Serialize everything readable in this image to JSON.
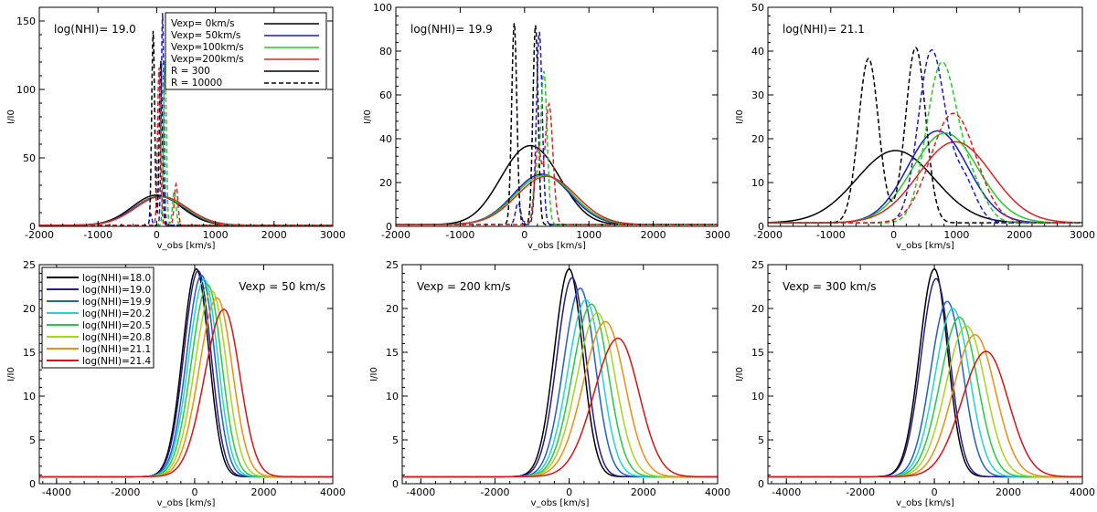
{
  "figure": {
    "description_labels": true
  },
  "chart_data": [
    {
      "type": "line",
      "panel": "top-left",
      "xlabel": "v_obs [km/s]",
      "ylabel": "I/I0",
      "xlim": [
        -2000,
        3000
      ],
      "ylim": [
        0,
        160
      ],
      "xticks": [
        -2000,
        -1000,
        0,
        1000,
        2000,
        3000
      ],
      "yticks": [
        0,
        50,
        100,
        150
      ],
      "annotation": "log(NHI)= 19.0",
      "legend": {
        "placement": "top-right",
        "entries": [
          {
            "label": "Vexp=  0km/s",
            "color": "#000000",
            "dash": "solid"
          },
          {
            "label": "Vexp= 50km/s",
            "color": "#1a1acc",
            "dash": "solid"
          },
          {
            "label": "Vexp=100km/s",
            "color": "#22cc22",
            "dash": "solid"
          },
          {
            "label": "Vexp=200km/s",
            "color": "#dd2222",
            "dash": "solid"
          },
          {
            "label": "R =   300",
            "color": "#000000",
            "dash": "solid"
          },
          {
            "label": "R = 10000",
            "color": "#000000",
            "dash": "dashed"
          }
        ]
      },
      "series": [
        {
          "name": "Vexp=0 R=300",
          "color": "#000000",
          "dash": "solid",
          "components": [
            {
              "amp": 22,
              "center": 0,
              "sigma": 420
            }
          ]
        },
        {
          "name": "Vexp=50 R=300",
          "color": "#1a1acc",
          "dash": "solid",
          "components": [
            {
              "amp": 21,
              "center": 40,
              "sigma": 430
            }
          ]
        },
        {
          "name": "Vexp=100 R=300",
          "color": "#22cc22",
          "dash": "solid",
          "components": [
            {
              "amp": 21,
              "center": 60,
              "sigma": 430
            }
          ]
        },
        {
          "name": "Vexp=200 R=300",
          "color": "#dd2222",
          "dash": "solid",
          "components": [
            {
              "amp": 21,
              "center": 80,
              "sigma": 440
            }
          ]
        },
        {
          "name": "Vexp=0 R=10000",
          "color": "#000000",
          "dash": "dashed",
          "components": [
            {
              "amp": 142,
              "center": -60,
              "sigma": 25
            },
            {
              "amp": 120,
              "center": 70,
              "sigma": 25
            }
          ]
        },
        {
          "name": "Vexp=50 R=10000",
          "color": "#1a1acc",
          "dash": "dashed",
          "components": [
            {
              "amp": 155,
              "center": 100,
              "sigma": 22
            },
            {
              "amp": 8,
              "center": -100,
              "sigma": 20
            }
          ]
        },
        {
          "name": "Vexp=100 R=10000",
          "color": "#22cc22",
          "dash": "dashed",
          "components": [
            {
              "amp": 120,
              "center": 140,
              "sigma": 24
            },
            {
              "amp": 25,
              "center": 300,
              "sigma": 30
            }
          ]
        },
        {
          "name": "Vexp=200 R=10000",
          "color": "#dd2222",
          "dash": "dashed",
          "components": [
            {
              "amp": 115,
              "center": 40,
              "sigma": 25
            },
            {
              "amp": 30,
              "center": 330,
              "sigma": 30
            }
          ]
        }
      ]
    },
    {
      "type": "line",
      "panel": "top-middle",
      "xlabel": "v_obs [km/s]",
      "ylabel": "I/I0",
      "xlim": [
        -2000,
        3000
      ],
      "ylim": [
        0,
        100
      ],
      "xticks": [
        -2000,
        -1000,
        0,
        1000,
        2000,
        3000
      ],
      "yticks": [
        0,
        20,
        40,
        60,
        80,
        100
      ],
      "annotation": "log(NHI)= 19.9",
      "series": [
        {
          "name": "Vexp=0 R=300",
          "color": "#000000",
          "dash": "solid",
          "components": [
            {
              "amp": 21,
              "center": -120,
              "sigma": 380
            },
            {
              "amp": 21,
              "center": 300,
              "sigma": 380
            }
          ]
        },
        {
          "name": "Vexp=50 R=300",
          "color": "#1a1acc",
          "dash": "solid",
          "components": [
            {
              "amp": 23,
              "center": 270,
              "sigma": 440
            }
          ]
        },
        {
          "name": "Vexp=100 R=300",
          "color": "#22cc22",
          "dash": "solid",
          "components": [
            {
              "amp": 22.5,
              "center": 300,
              "sigma": 450
            }
          ]
        },
        {
          "name": "Vexp=200 R=300",
          "color": "#dd2222",
          "dash": "solid",
          "components": [
            {
              "amp": 22,
              "center": 340,
              "sigma": 460
            }
          ]
        },
        {
          "name": "Vexp=0 R=10000",
          "color": "#000000",
          "dash": "dashed",
          "components": [
            {
              "amp": 92,
              "center": -160,
              "sigma": 40
            },
            {
              "amp": 91,
              "center": 170,
              "sigma": 40
            }
          ]
        },
        {
          "name": "Vexp=50 R=10000",
          "color": "#1a1acc",
          "dash": "dashed",
          "components": [
            {
              "amp": 88,
              "center": 230,
              "sigma": 45
            },
            {
              "amp": 10,
              "center": -100,
              "sigma": 40
            }
          ]
        },
        {
          "name": "Vexp=100 R=10000",
          "color": "#22cc22",
          "dash": "dashed",
          "components": [
            {
              "amp": 70,
              "center": 300,
              "sigma": 50
            },
            {
              "amp": 20,
              "center": 170,
              "sigma": 40
            }
          ]
        },
        {
          "name": "Vexp=200 R=10000",
          "color": "#dd2222",
          "dash": "dashed",
          "components": [
            {
              "amp": 55,
              "center": 380,
              "sigma": 60
            },
            {
              "amp": 35,
              "center": 210,
              "sigma": 50
            }
          ]
        }
      ]
    },
    {
      "type": "line",
      "panel": "top-right",
      "xlabel": "v_obs [km/s]",
      "ylabel": "I/I0",
      "xlim": [
        -2000,
        3000
      ],
      "ylim": [
        0,
        50
      ],
      "xticks": [
        -2000,
        -1000,
        0,
        1000,
        2000,
        3000
      ],
      "yticks": [
        0,
        10,
        20,
        30,
        40,
        50
      ],
      "annotation": "log(NHI)= 21.1",
      "series": [
        {
          "name": "Vexp=0 R=300",
          "color": "#000000",
          "dash": "solid",
          "components": [
            {
              "amp": 16.5,
              "center": 30,
              "sigma": 620
            }
          ]
        },
        {
          "name": "Vexp=50 R=300",
          "color": "#1a1acc",
          "dash": "solid",
          "components": [
            {
              "amp": 21,
              "center": 700,
              "sigma": 480
            }
          ]
        },
        {
          "name": "Vexp=100 R=300",
          "color": "#22cc22",
          "dash": "solid",
          "components": [
            {
              "amp": 20.5,
              "center": 820,
              "sigma": 520
            }
          ]
        },
        {
          "name": "Vexp=200 R=300",
          "color": "#dd2222",
          "dash": "solid",
          "components": [
            {
              "amp": 18.5,
              "center": 980,
              "sigma": 580
            }
          ]
        },
        {
          "name": "Vexp=0 R=10000",
          "color": "#000000",
          "dash": "dashed",
          "components": [
            {
              "amp": 37.5,
              "center": -400,
              "sigma": 160
            },
            {
              "amp": 40,
              "center": 350,
              "sigma": 160
            }
          ]
        },
        {
          "name": "Vexp=50 R=10000",
          "color": "#1a1acc",
          "dash": "dashed",
          "components": [
            {
              "amp": 39,
              "center": 600,
              "sigma": 210
            },
            {
              "amp": 10,
              "center": 1100,
              "sigma": 200
            }
          ]
        },
        {
          "name": "Vexp=100 R=10000",
          "color": "#22cc22",
          "dash": "dashed",
          "components": [
            {
              "amp": 36,
              "center": 760,
              "sigma": 240
            },
            {
              "amp": 8,
              "center": 1250,
              "sigma": 220
            }
          ]
        },
        {
          "name": "Vexp=200 R=10000",
          "color": "#dd2222",
          "dash": "dashed",
          "components": [
            {
              "amp": 25,
              "center": 950,
              "sigma": 360
            }
          ]
        }
      ]
    },
    {
      "type": "line",
      "panel": "bottom-left",
      "xlabel": "v_obs [km/s]",
      "ylabel": "I/I0",
      "xlim": [
        -4500,
        4000
      ],
      "ylim": [
        0,
        25
      ],
      "xticks": [
        -4000,
        -2000,
        0,
        2000,
        4000
      ],
      "yticks": [
        0,
        5,
        10,
        15,
        20,
        25
      ],
      "annotation": "Vexp = 50 km/s",
      "legend": {
        "placement": "top-left",
        "entries": [
          {
            "label": "log(NHI)=18.0",
            "color": "#000000"
          },
          {
            "label": "log(NHI)=19.0",
            "color": "#2a1a8c"
          },
          {
            "label": "log(NHI)=19.9",
            "color": "#1f5fd0"
          },
          {
            "label": "log(NHI)=20.2",
            "color": "#1fd6d6"
          },
          {
            "label": "log(NHI)=20.5",
            "color": "#22cc44"
          },
          {
            "label": "log(NHI)=20.8",
            "color": "#a6d61a"
          },
          {
            "label": "log(NHI)=21.1",
            "color": "#f08c10"
          },
          {
            "label": "log(NHI)=21.4",
            "color": "#dd1111"
          }
        ]
      },
      "series": [
        {
          "name": "log(NHI)=18.0",
          "color": "#000000",
          "peak": 24.5,
          "center": 50,
          "sigma_left": 400,
          "sigma_right": 360
        },
        {
          "name": "log(NHI)=19.0",
          "color": "#2a1a8c",
          "peak": 24.3,
          "center": 100,
          "sigma_left": 410,
          "sigma_right": 370
        },
        {
          "name": "log(NHI)=19.9",
          "color": "#1f5fd0",
          "peak": 23.8,
          "center": 200,
          "sigma_left": 430,
          "sigma_right": 380
        },
        {
          "name": "log(NHI)=20.2",
          "color": "#1fd6d6",
          "peak": 23.3,
          "center": 280,
          "sigma_left": 450,
          "sigma_right": 390
        },
        {
          "name": "log(NHI)=20.5",
          "color": "#22cc44",
          "peak": 22.7,
          "center": 380,
          "sigma_left": 470,
          "sigma_right": 400
        },
        {
          "name": "log(NHI)=20.8",
          "color": "#a6d61a",
          "peak": 22.0,
          "center": 500,
          "sigma_left": 490,
          "sigma_right": 420
        },
        {
          "name": "log(NHI)=21.1",
          "color": "#f08c10",
          "peak": 21.2,
          "center": 650,
          "sigma_left": 520,
          "sigma_right": 440
        },
        {
          "name": "log(NHI)=21.4",
          "color": "#dd1111",
          "peak": 19.9,
          "center": 850,
          "sigma_left": 560,
          "sigma_right": 460
        }
      ]
    },
    {
      "type": "line",
      "panel": "bottom-middle",
      "xlabel": "v_obs [km/s]",
      "ylabel": "I/I0",
      "xlim": [
        -4500,
        4000
      ],
      "ylim": [
        0,
        25
      ],
      "xticks": [
        -4000,
        -2000,
        0,
        2000,
        4000
      ],
      "yticks": [
        0,
        5,
        10,
        15,
        20,
        25
      ],
      "annotation": "Vexp = 200 km/s",
      "series": [
        {
          "name": "log(NHI)=18.0",
          "color": "#000000",
          "peak": 24.5,
          "center": 0,
          "sigma_left": 400,
          "sigma_right": 360
        },
        {
          "name": "log(NHI)=19.0",
          "color": "#2a1a8c",
          "peak": 23.5,
          "center": 80,
          "sigma_left": 410,
          "sigma_right": 370
        },
        {
          "name": "log(NHI)=19.9",
          "color": "#1f5fd0",
          "peak": 22.3,
          "center": 300,
          "sigma_left": 450,
          "sigma_right": 400
        },
        {
          "name": "log(NHI)=20.2",
          "color": "#1fd6d6",
          "peak": 21.0,
          "center": 450,
          "sigma_left": 480,
          "sigma_right": 420
        },
        {
          "name": "log(NHI)=20.5",
          "color": "#22cc44",
          "peak": 20.5,
          "center": 600,
          "sigma_left": 510,
          "sigma_right": 450
        },
        {
          "name": "log(NHI)=20.8",
          "color": "#a6d61a",
          "peak": 19.5,
          "center": 760,
          "sigma_left": 550,
          "sigma_right": 480
        },
        {
          "name": "log(NHI)=21.1",
          "color": "#f08c10",
          "peak": 18.5,
          "center": 980,
          "sigma_left": 600,
          "sigma_right": 520
        },
        {
          "name": "log(NHI)=21.4",
          "color": "#dd1111",
          "peak": 16.6,
          "center": 1320,
          "sigma_left": 650,
          "sigma_right": 560
        }
      ]
    },
    {
      "type": "line",
      "panel": "bottom-right",
      "xlabel": "v_obs [km/s]",
      "ylabel": "I/I0",
      "xlim": [
        -4500,
        4000
      ],
      "ylim": [
        0,
        25
      ],
      "xticks": [
        -4000,
        -2000,
        0,
        2000,
        4000
      ],
      "yticks": [
        0,
        5,
        10,
        15,
        20,
        25
      ],
      "annotation": "Vexp = 300 km/s",
      "series": [
        {
          "name": "log(NHI)=18.0",
          "color": "#000000",
          "peak": 24.5,
          "center": 0,
          "sigma_left": 400,
          "sigma_right": 360
        },
        {
          "name": "log(NHI)=19.0",
          "color": "#2a1a8c",
          "peak": 23.4,
          "center": 50,
          "sigma_left": 410,
          "sigma_right": 370
        },
        {
          "name": "log(NHI)=19.9",
          "color": "#1f5fd0",
          "peak": 20.8,
          "center": 350,
          "sigma_left": 450,
          "sigma_right": 420
        },
        {
          "name": "log(NHI)=20.2",
          "color": "#1fd6d6",
          "peak": 20.0,
          "center": 500,
          "sigma_left": 480,
          "sigma_right": 450
        },
        {
          "name": "log(NHI)=20.5",
          "color": "#22cc44",
          "peak": 19.0,
          "center": 680,
          "sigma_left": 520,
          "sigma_right": 480
        },
        {
          "name": "log(NHI)=20.8",
          "color": "#a6d61a",
          "peak": 18.0,
          "center": 870,
          "sigma_left": 560,
          "sigma_right": 510
        },
        {
          "name": "log(NHI)=21.1",
          "color": "#f08c10",
          "peak": 17.0,
          "center": 1100,
          "sigma_left": 600,
          "sigma_right": 550
        },
        {
          "name": "log(NHI)=21.4",
          "color": "#dd1111",
          "peak": 15.1,
          "center": 1400,
          "sigma_left": 660,
          "sigma_right": 600
        }
      ]
    }
  ]
}
